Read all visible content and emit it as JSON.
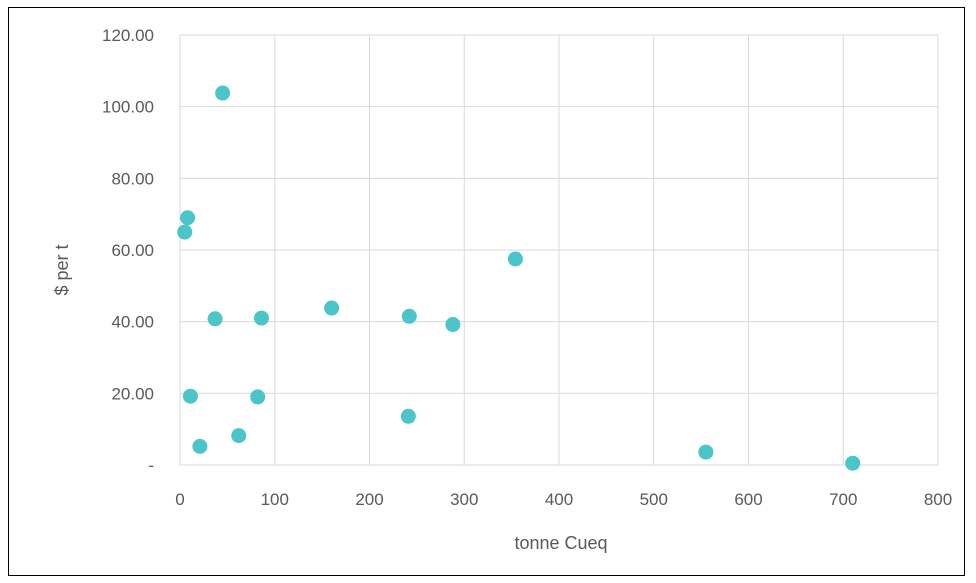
{
  "chart_data": {
    "type": "scatter",
    "title": "",
    "xlabel": "tonne Cueq",
    "ylabel": "$ per t",
    "xlim": [
      0,
      800
    ],
    "ylim": [
      0,
      120
    ],
    "x_ticks": [
      "0",
      "100",
      "200",
      "300",
      "400",
      "500",
      "600",
      "700",
      "800"
    ],
    "y_ticks": [
      "-",
      "20.00",
      "40.00",
      "60.00",
      "80.00",
      "100.00",
      "120.00"
    ],
    "grid": true,
    "legend": "none",
    "marker_color": "#4BC5C9",
    "points": [
      {
        "x": 45,
        "y": 103.8
      },
      {
        "x": 8,
        "y": 69.0
      },
      {
        "x": 5,
        "y": 65.0
      },
      {
        "x": 354,
        "y": 57.5
      },
      {
        "x": 160,
        "y": 43.8
      },
      {
        "x": 242,
        "y": 41.5
      },
      {
        "x": 86,
        "y": 41.0
      },
      {
        "x": 37,
        "y": 40.8
      },
      {
        "x": 288,
        "y": 39.2
      },
      {
        "x": 11,
        "y": 19.2
      },
      {
        "x": 82,
        "y": 19.0
      },
      {
        "x": 241,
        "y": 13.6
      },
      {
        "x": 62,
        "y": 8.2
      },
      {
        "x": 21,
        "y": 5.2
      },
      {
        "x": 555,
        "y": 3.6
      },
      {
        "x": 710,
        "y": 0.5
      }
    ]
  }
}
